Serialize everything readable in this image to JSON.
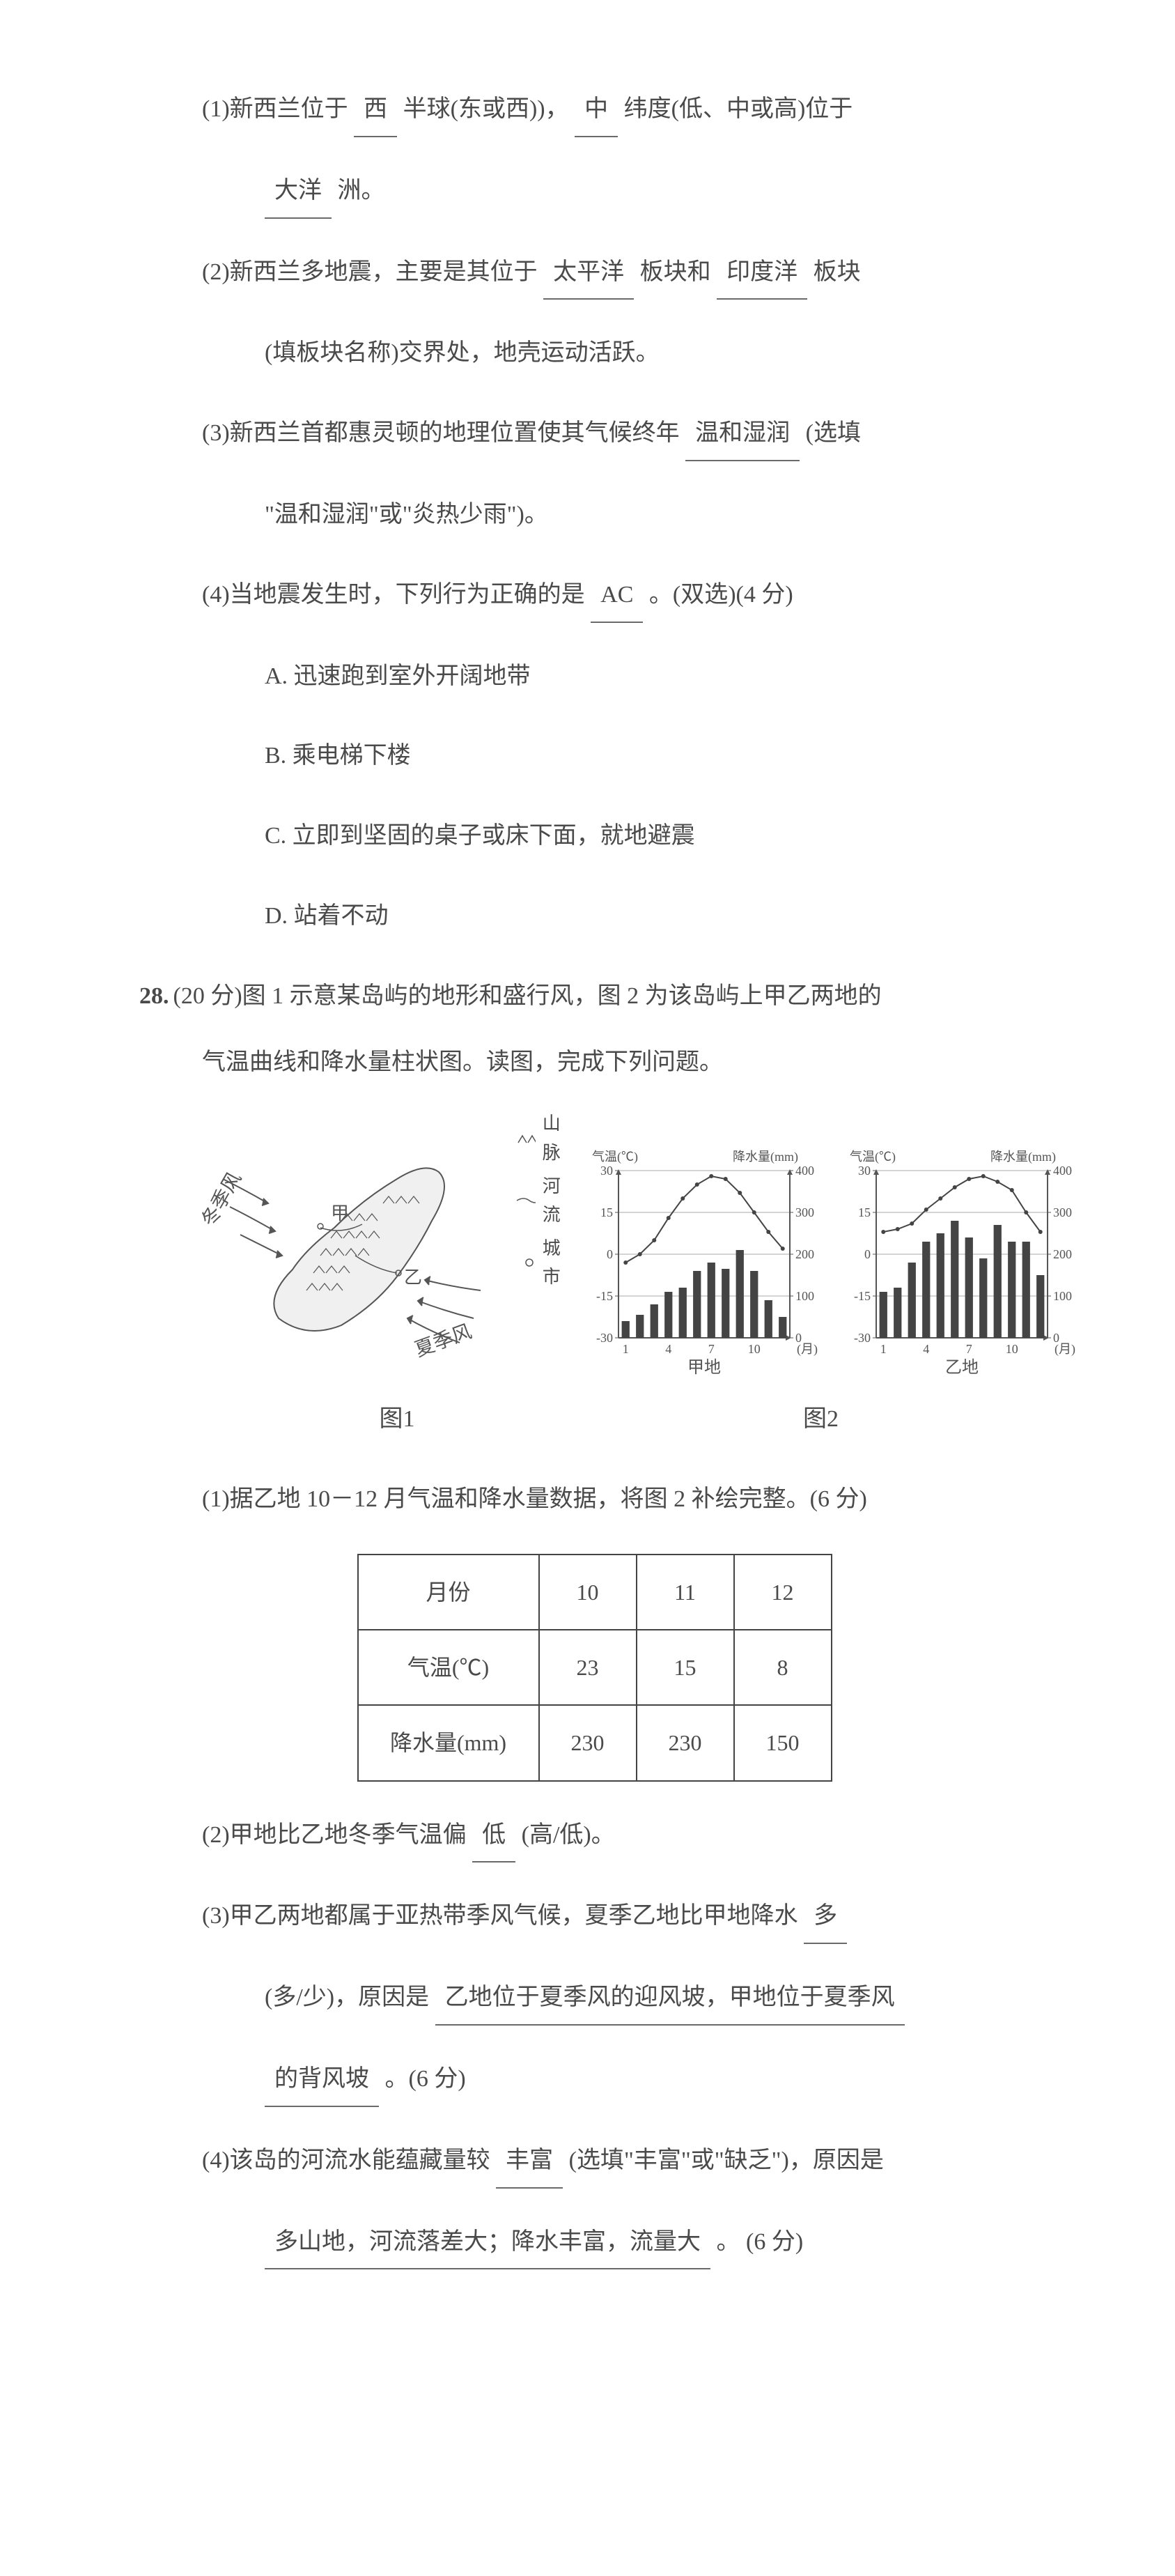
{
  "q27": {
    "sub1": {
      "prefix": "(1)新西兰位于",
      "blank1": "西",
      "mid1": "半球(东或西))，",
      "blank2": "中",
      "mid2": "纬度(低、中或高)位于",
      "line2_blank": "大洋",
      "line2_suffix": "洲。"
    },
    "sub2": {
      "prefix": "(2)新西兰多地震，主要是其位于",
      "blank1": "太平洋",
      "mid": "板块和",
      "blank2": "印度洋",
      "suffix": "板块",
      "line2": "(填板块名称)交界处，地壳运动活跃。"
    },
    "sub3": {
      "prefix": "(3)新西兰首都惠灵顿的地理位置使其气候终年",
      "blank": "温和湿润",
      "suffix": "(选填",
      "line2": "\"温和湿润\"或\"炎热少雨\")。"
    },
    "sub4": {
      "prefix": "(4)当地震发生时，下列行为正确的是",
      "blank": "AC",
      "suffix": "。(双选)(4 分)",
      "optA": "A. 迅速跑到室外开阔地带",
      "optB": "B. 乘电梯下楼",
      "optC": "C. 立即到坚固的桌子或床下面，就地避震",
      "optD": "D. 站着不动"
    }
  },
  "q28": {
    "num": "28.",
    "header": "(20 分)图 1 示意某岛屿的地形和盛行风，图 2 为该岛屿上甲乙两地的",
    "header2": "气温曲线和降水量柱状图。读图，完成下列问题。",
    "map": {
      "winter_wind": "冬季风",
      "summer_wind": "夏季风",
      "jia": "甲",
      "yi": "乙",
      "legend_mountain": "山脉",
      "legend_river": "河流",
      "legend_city": "城市"
    },
    "chart_labels": {
      "temp_axis": "气温(℃)",
      "precip_axis": "降水量(mm)",
      "month_axis": "(月)",
      "jia_caption": "甲地",
      "yi_caption": "乙地"
    },
    "chart_jia": {
      "temp_ticks": [
        -30,
        -15,
        0,
        15,
        30
      ],
      "precip_ticks": [
        0,
        100,
        200,
        300,
        400
      ],
      "month_ticks": [
        1,
        4,
        7,
        10
      ],
      "temps": [
        -3,
        0,
        5,
        13,
        20,
        25,
        28,
        27,
        22,
        15,
        8,
        2
      ],
      "precip": [
        40,
        55,
        80,
        110,
        120,
        160,
        180,
        165,
        210,
        160,
        90,
        50
      ]
    },
    "chart_yi": {
      "temp_ticks": [
        -30,
        -15,
        0,
        15,
        30
      ],
      "precip_ticks": [
        0,
        100,
        200,
        300,
        400
      ],
      "month_ticks": [
        1,
        4,
        7,
        10
      ],
      "temps": [
        8,
        9,
        11,
        16,
        20,
        24,
        27,
        28,
        26,
        23,
        15,
        8
      ],
      "precip": [
        110,
        120,
        180,
        230,
        250,
        280,
        240,
        190,
        270,
        230,
        230,
        150
      ]
    },
    "fig1_caption": "图1",
    "fig2_caption": "图2",
    "sub1": "(1)据乙地 10－12 月气温和降水量数据，将图 2 补绘完整。(6 分)",
    "table": {
      "h_month": "月份",
      "h_temp": "气温(℃)",
      "h_precip": "降水量(mm)",
      "months": [
        "10",
        "11",
        "12"
      ],
      "temps": [
        "23",
        "15",
        "8"
      ],
      "precips": [
        "230",
        "230",
        "150"
      ]
    },
    "sub2": {
      "prefix": "(2)甲地比乙地冬季气温偏",
      "blank": "低",
      "suffix": "(高/低)。"
    },
    "sub3": {
      "line1_prefix": "(3)甲乙两地都属于亚热带季风气候，夏季乙地比甲地降水",
      "line1_blank": "多",
      "line2_prefix": "(多/少)，原因是",
      "line2_blank": "乙地位于夏季风的迎风坡，甲地位于夏季风",
      "line3_blank": "的背风坡",
      "line3_suffix": "。(6 分)"
    },
    "sub4": {
      "line1_prefix": "(4)该岛的河流水能蕴藏量较",
      "line1_blank": "丰富",
      "line1_suffix": "(选填\"丰富\"或\"缺乏\")，原因是",
      "line2_blank": "多山地，河流落差大；降水丰富，流量大",
      "line2_suffix": "。 (6 分)"
    }
  },
  "style": {
    "text_color": "#4a4a4a",
    "background": "#ffffff",
    "font_size_body": 34,
    "font_size_chart_label": 18,
    "bar_color": "#444444",
    "line_color": "#444444",
    "axis_color": "#555555",
    "table_border": "#444444"
  }
}
